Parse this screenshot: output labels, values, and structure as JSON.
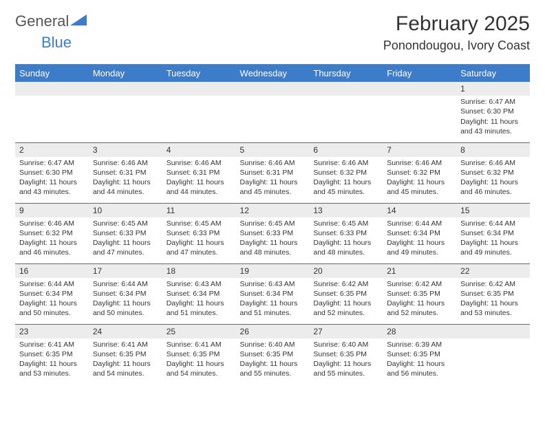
{
  "logo": {
    "text1": "General",
    "text2": "Blue"
  },
  "header": {
    "month_year": "February 2025",
    "location": "Ponondougou, Ivory Coast"
  },
  "colors": {
    "header_bg": "#3d7cc9",
    "header_fg": "#ffffff",
    "daynum_bg": "#ececec",
    "rule": "#666666",
    "text": "#333333"
  },
  "weekdays": [
    "Sunday",
    "Monday",
    "Tuesday",
    "Wednesday",
    "Thursday",
    "Friday",
    "Saturday"
  ],
  "calendar": {
    "type": "table",
    "columns": 7,
    "rows": 5,
    "start_weekday_index": 6,
    "days": [
      {
        "n": 1,
        "sunrise": "6:47 AM",
        "sunset": "6:30 PM",
        "daylight": "11 hours and 43 minutes."
      },
      {
        "n": 2,
        "sunrise": "6:47 AM",
        "sunset": "6:30 PM",
        "daylight": "11 hours and 43 minutes."
      },
      {
        "n": 3,
        "sunrise": "6:46 AM",
        "sunset": "6:31 PM",
        "daylight": "11 hours and 44 minutes."
      },
      {
        "n": 4,
        "sunrise": "6:46 AM",
        "sunset": "6:31 PM",
        "daylight": "11 hours and 44 minutes."
      },
      {
        "n": 5,
        "sunrise": "6:46 AM",
        "sunset": "6:31 PM",
        "daylight": "11 hours and 45 minutes."
      },
      {
        "n": 6,
        "sunrise": "6:46 AM",
        "sunset": "6:32 PM",
        "daylight": "11 hours and 45 minutes."
      },
      {
        "n": 7,
        "sunrise": "6:46 AM",
        "sunset": "6:32 PM",
        "daylight": "11 hours and 45 minutes."
      },
      {
        "n": 8,
        "sunrise": "6:46 AM",
        "sunset": "6:32 PM",
        "daylight": "11 hours and 46 minutes."
      },
      {
        "n": 9,
        "sunrise": "6:46 AM",
        "sunset": "6:32 PM",
        "daylight": "11 hours and 46 minutes."
      },
      {
        "n": 10,
        "sunrise": "6:45 AM",
        "sunset": "6:33 PM",
        "daylight": "11 hours and 47 minutes."
      },
      {
        "n": 11,
        "sunrise": "6:45 AM",
        "sunset": "6:33 PM",
        "daylight": "11 hours and 47 minutes."
      },
      {
        "n": 12,
        "sunrise": "6:45 AM",
        "sunset": "6:33 PM",
        "daylight": "11 hours and 48 minutes."
      },
      {
        "n": 13,
        "sunrise": "6:45 AM",
        "sunset": "6:33 PM",
        "daylight": "11 hours and 48 minutes."
      },
      {
        "n": 14,
        "sunrise": "6:44 AM",
        "sunset": "6:34 PM",
        "daylight": "11 hours and 49 minutes."
      },
      {
        "n": 15,
        "sunrise": "6:44 AM",
        "sunset": "6:34 PM",
        "daylight": "11 hours and 49 minutes."
      },
      {
        "n": 16,
        "sunrise": "6:44 AM",
        "sunset": "6:34 PM",
        "daylight": "11 hours and 50 minutes."
      },
      {
        "n": 17,
        "sunrise": "6:44 AM",
        "sunset": "6:34 PM",
        "daylight": "11 hours and 50 minutes."
      },
      {
        "n": 18,
        "sunrise": "6:43 AM",
        "sunset": "6:34 PM",
        "daylight": "11 hours and 51 minutes."
      },
      {
        "n": 19,
        "sunrise": "6:43 AM",
        "sunset": "6:34 PM",
        "daylight": "11 hours and 51 minutes."
      },
      {
        "n": 20,
        "sunrise": "6:42 AM",
        "sunset": "6:35 PM",
        "daylight": "11 hours and 52 minutes."
      },
      {
        "n": 21,
        "sunrise": "6:42 AM",
        "sunset": "6:35 PM",
        "daylight": "11 hours and 52 minutes."
      },
      {
        "n": 22,
        "sunrise": "6:42 AM",
        "sunset": "6:35 PM",
        "daylight": "11 hours and 53 minutes."
      },
      {
        "n": 23,
        "sunrise": "6:41 AM",
        "sunset": "6:35 PM",
        "daylight": "11 hours and 53 minutes."
      },
      {
        "n": 24,
        "sunrise": "6:41 AM",
        "sunset": "6:35 PM",
        "daylight": "11 hours and 54 minutes."
      },
      {
        "n": 25,
        "sunrise": "6:41 AM",
        "sunset": "6:35 PM",
        "daylight": "11 hours and 54 minutes."
      },
      {
        "n": 26,
        "sunrise": "6:40 AM",
        "sunset": "6:35 PM",
        "daylight": "11 hours and 55 minutes."
      },
      {
        "n": 27,
        "sunrise": "6:40 AM",
        "sunset": "6:35 PM",
        "daylight": "11 hours and 55 minutes."
      },
      {
        "n": 28,
        "sunrise": "6:39 AM",
        "sunset": "6:35 PM",
        "daylight": "11 hours and 56 minutes."
      }
    ]
  },
  "labels": {
    "sunrise_prefix": "Sunrise: ",
    "sunset_prefix": "Sunset: ",
    "daylight_prefix": "Daylight: "
  }
}
